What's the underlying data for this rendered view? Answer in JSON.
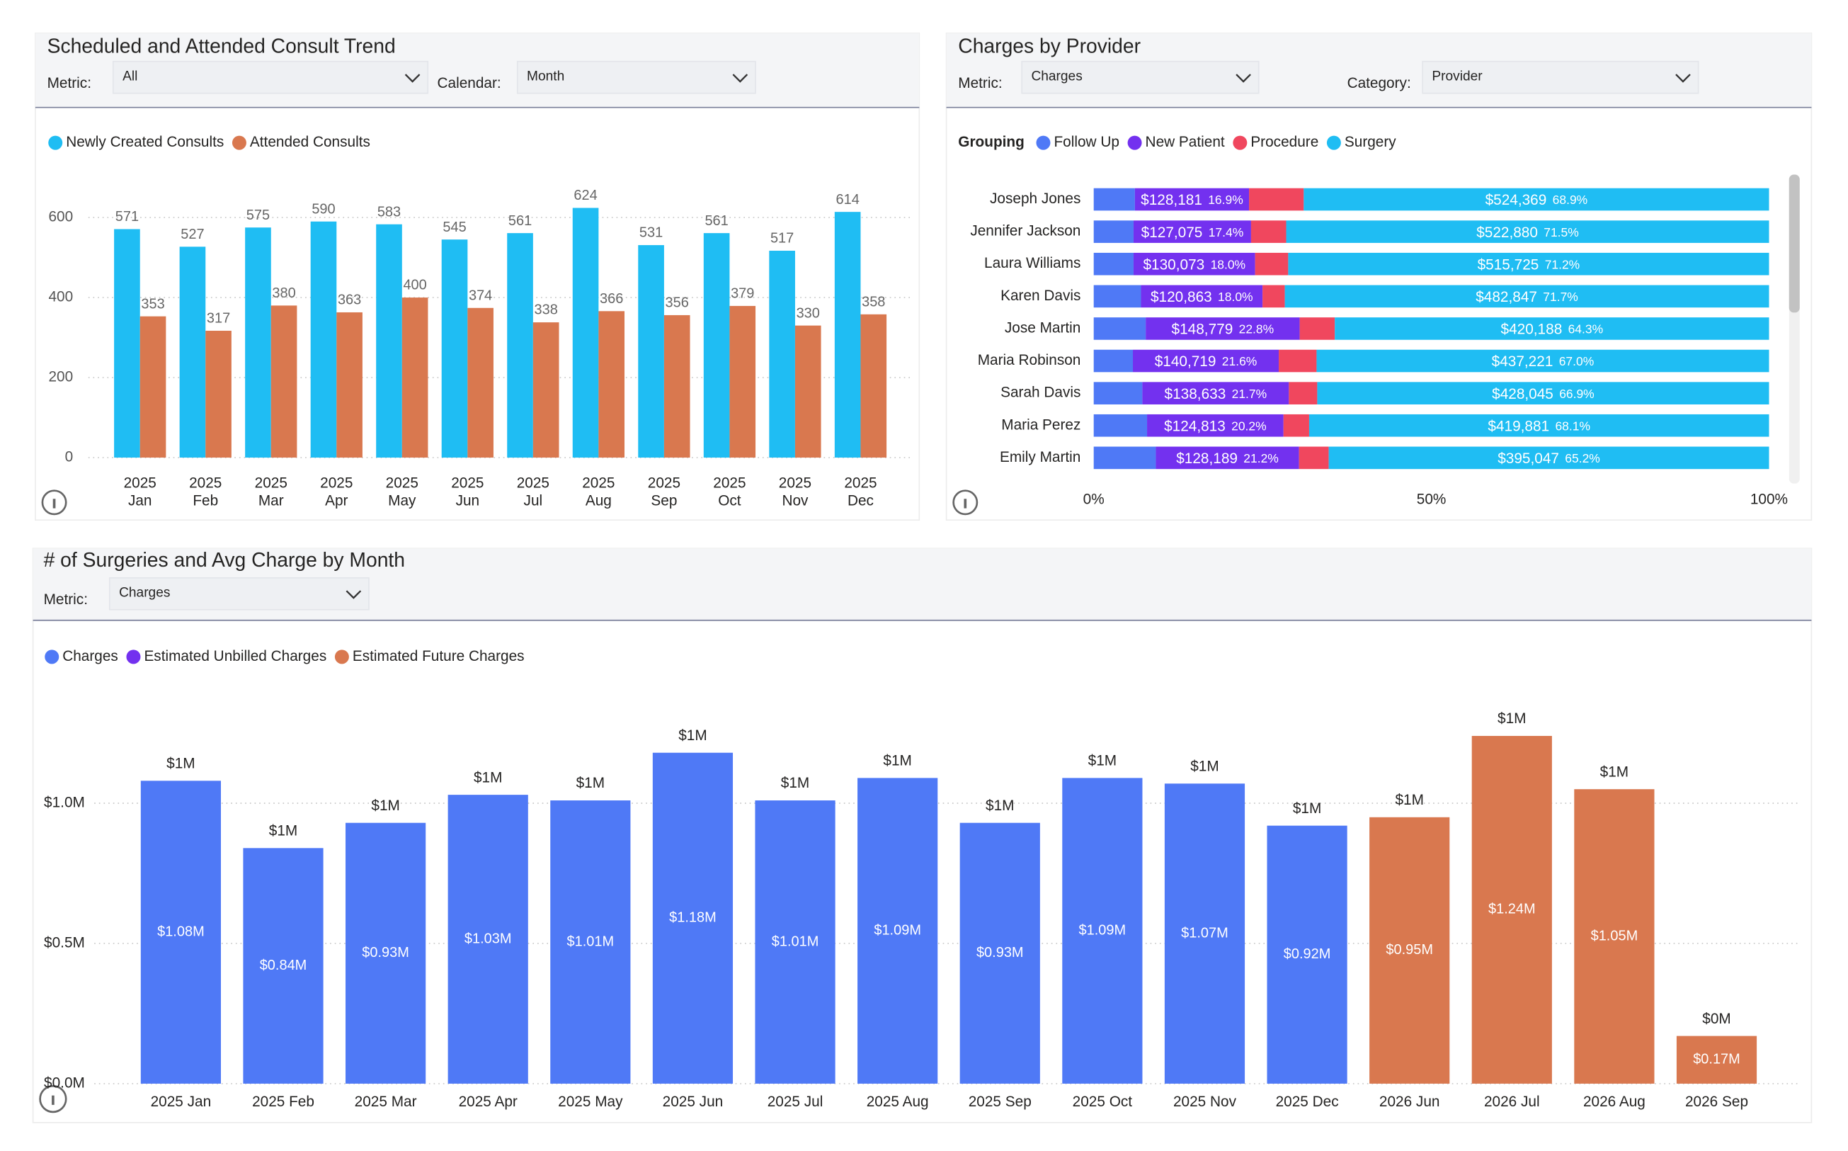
{
  "chart_data": [
    {
      "type": "bar",
      "title": "Scheduled and Attended Consult Trend",
      "controls": [
        {
          "label": "Metric:",
          "value": "All"
        },
        {
          "label": "Calendar:",
          "value": "Month"
        }
      ],
      "categories": [
        "2025\nJan",
        "2025\nFeb",
        "2025\nMar",
        "2025\nApr",
        "2025\nMay",
        "2025\nJun",
        "2025\nJul",
        "2025\nAug",
        "2025\nSep",
        "2025\nOct",
        "2025\nNov",
        "2025\nDec"
      ],
      "series": [
        {
          "name": "Newly Created Consults",
          "color": "#1fbdf3",
          "values": [
            571,
            527,
            575,
            590,
            583,
            545,
            561,
            624,
            531,
            561,
            517,
            614
          ]
        },
        {
          "name": "Attended Consults",
          "color": "#d9784f",
          "values": [
            353,
            317,
            380,
            363,
            400,
            374,
            338,
            366,
            356,
            379,
            330,
            358
          ]
        }
      ],
      "ylim": [
        0,
        660
      ],
      "yticks": [
        0,
        200,
        400,
        600
      ],
      "grid": true
    },
    {
      "type": "barh",
      "title": "Charges by Provider",
      "controls": [
        {
          "label": "Metric:",
          "value": "Charges"
        },
        {
          "label": "Category:",
          "value": "Provider"
        }
      ],
      "legend_title": "Grouping",
      "categories": [
        "Joseph Jones",
        "Jennifer Jackson",
        "Laura Williams",
        "Karen Davis",
        "Jose Martin",
        "Maria Robinson",
        "Sarah Davis",
        "Maria Perez",
        "Emily Martin"
      ],
      "series": [
        {
          "name": "Follow Up",
          "color": "#4f79f6",
          "values": [
            6.1,
            5.9,
            5.9,
            7.0,
            7.7,
            5.8,
            7.2,
            7.9,
            9.2
          ]
        },
        {
          "name": "New Patient",
          "color": "#7331ef",
          "values": [
            16.9,
            17.4,
            18.0,
            18.0,
            22.8,
            21.6,
            21.7,
            20.2,
            21.2
          ],
          "amounts": [
            "$128,181",
            "$127,075",
            "$130,073",
            "$120,863",
            "$148,779",
            "$140,719",
            "$138,633",
            "$124,813",
            "$128,189"
          ],
          "value_labels": [
            "16.9%",
            "17.4%",
            "18.0%",
            "18.0%",
            "22.8%",
            "21.6%",
            "21.7%",
            "20.2%",
            "21.2%"
          ]
        },
        {
          "name": "Procedure",
          "color": "#f0475e",
          "values": [
            8.1,
            5.2,
            4.9,
            3.3,
            5.2,
            5.6,
            4.2,
            3.8,
            4.4
          ]
        },
        {
          "name": "Surgery",
          "color": "#1fbdf3",
          "values": [
            68.9,
            71.5,
            71.2,
            71.7,
            64.3,
            67.0,
            66.9,
            68.1,
            65.2
          ],
          "amounts": [
            "$524,369",
            "$522,880",
            "$515,725",
            "$482,847",
            "$420,188",
            "$437,221",
            "$428,045",
            "$419,881",
            "$395,047"
          ],
          "value_labels": [
            "68.9%",
            "71.5%",
            "71.2%",
            "71.7%",
            "64.3%",
            "67.0%",
            "66.9%",
            "68.1%",
            "65.2%"
          ]
        }
      ],
      "xlim": [
        0,
        100
      ],
      "xticks": [
        {
          "value": 0,
          "label": "0%"
        },
        {
          "value": 50,
          "label": "50%"
        },
        {
          "value": 100,
          "label": "100%"
        }
      ]
    },
    {
      "type": "stackedbar",
      "title": "# of Surgeries and Avg Charge by Month",
      "controls": [
        {
          "label": "Metric:",
          "value": "Charges"
        }
      ],
      "categories": [
        "2025 Jan",
        "2025 Feb",
        "2025 Mar",
        "2025 Apr",
        "2025 May",
        "2025 Jun",
        "2025 Jul",
        "2025 Aug",
        "2025 Sep",
        "2025 Oct",
        "2025 Nov",
        "2025 Dec",
        "2026 Jun",
        "2026 Jul",
        "2026 Aug",
        "2026 Sep"
      ],
      "series": [
        {
          "name": "Charges",
          "color": "#4f79f6",
          "values": [
            1080000,
            840000,
            930000,
            1030000,
            1010000,
            1180000,
            1010000,
            1090000,
            930000,
            1090000,
            1070000,
            920000,
            null,
            null,
            null,
            null
          ],
          "value_labels": [
            "$1.08M",
            "$0.84M",
            "$0.93M",
            "$1.03M",
            "$1.01M",
            "$1.18M",
            "$1.01M",
            "$1.09M",
            "$0.93M",
            "$1.09M",
            "$1.07M",
            "$0.92M",
            null,
            null,
            null,
            null
          ]
        },
        {
          "name": "Estimated Unbilled Charges",
          "color": "#7331ef",
          "values": [
            null,
            null,
            null,
            null,
            null,
            null,
            null,
            null,
            null,
            null,
            null,
            null,
            null,
            null,
            null,
            null
          ]
        },
        {
          "name": "Estimated Future Charges",
          "color": "#d9784f",
          "values": [
            null,
            null,
            null,
            null,
            null,
            null,
            null,
            null,
            null,
            null,
            null,
            null,
            950000,
            1240000,
            1050000,
            170000
          ],
          "value_labels": [
            null,
            null,
            null,
            null,
            null,
            null,
            null,
            null,
            null,
            null,
            null,
            null,
            "$0.95M",
            "$1.24M",
            "$1.05M",
            "$0.17M"
          ]
        }
      ],
      "total_labels": [
        "$1M",
        "$1M",
        "$1M",
        "$1M",
        "$1M",
        "$1M",
        "$1M",
        "$1M",
        "$1M",
        "$1M",
        "$1M",
        "$1M",
        "$1M",
        "$1M",
        "$1M",
        "$0M"
      ],
      "ylim": [
        0,
        1400000
      ],
      "yticks": [
        {
          "value": 0,
          "label": "$0.0M"
        },
        {
          "value": 500000,
          "label": "$0.5M"
        },
        {
          "value": 1000000,
          "label": "$1.0M"
        }
      ],
      "grid": true
    }
  ]
}
